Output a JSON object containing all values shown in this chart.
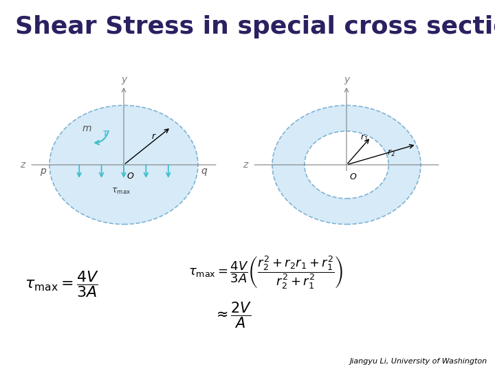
{
  "title": "Shear Stress in special cross sections",
  "title_bg_color": "#C8A83C",
  "title_text_color": "#2B2060",
  "bg_color": "#FFFFFF",
  "circle_fill": "#D6EAF8",
  "circle_edge": "#7FB3D3",
  "arrow_color": "#3DBECC",
  "formula_left": "\\tau_{\\max} = \\dfrac{4V}{3A}",
  "formula_right_line1": "\\tau_{\\max} = \\dfrac{4V}{3A}\\left(\\dfrac{r_2^2 + r_2 r_1 + r_1^2}{r_2^2 + r_1^2}\\right)",
  "formula_right_line2": "\\approx \\dfrac{2V}{A}",
  "credit": "Jiangyu Li, University of Washington"
}
